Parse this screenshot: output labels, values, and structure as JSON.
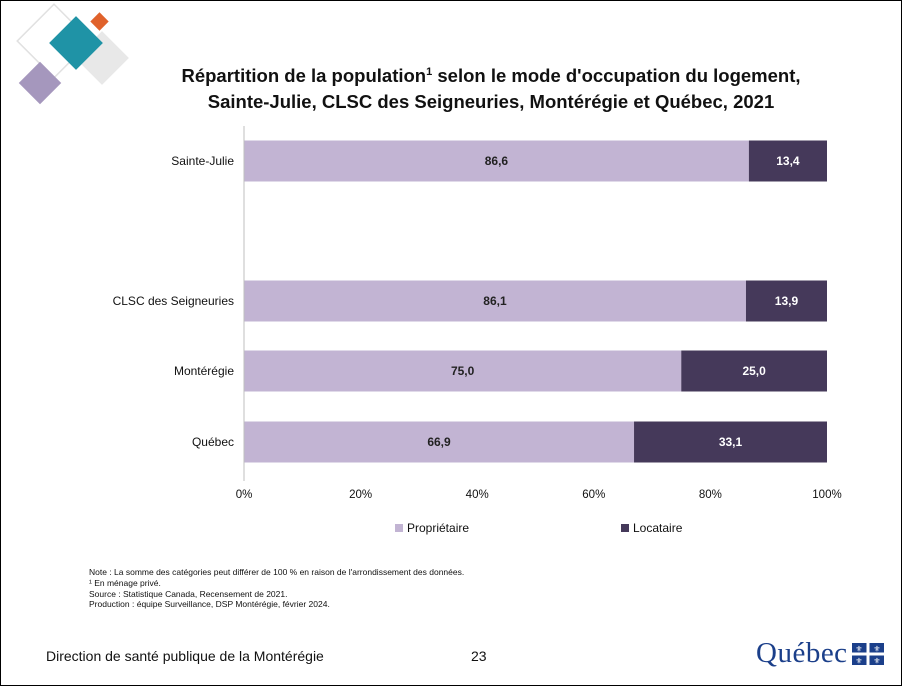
{
  "title": {
    "line1_part1": "Répartition de la population",
    "line1_sup": "1",
    "line1_part2": " selon le mode d'occupation du logement,",
    "line2": "Sainte-Julie, CLSC des Seigneuries, Montérégie et Québec, 2021"
  },
  "chart_data": {
    "type": "bar",
    "orientation": "horizontal",
    "stacked": true,
    "categories": [
      "Sainte-Julie",
      "CLSC des Seigneuries",
      "Montérégie",
      "Québec"
    ],
    "series": [
      {
        "name": "Propriétaire",
        "values": [
          86.6,
          86.1,
          75.0,
          66.9
        ],
        "labels": [
          "86,6",
          "86,1",
          "75,0",
          "66,9"
        ],
        "color": "#c2b4d3",
        "label_color": "#222222"
      },
      {
        "name": "Locataire",
        "values": [
          13.4,
          13.9,
          25.0,
          33.1
        ],
        "labels": [
          "13,4",
          "13,9",
          "25,0",
          "33,1"
        ],
        "color": "#45395a",
        "label_color": "#ffffff"
      }
    ],
    "xlim": [
      0,
      100
    ],
    "xticks": [
      0,
      20,
      40,
      60,
      80,
      100
    ],
    "xtick_labels": [
      "0%",
      "20%",
      "40%",
      "60%",
      "80%",
      "100%"
    ],
    "legend_position": "bottom",
    "grid": false
  },
  "notes": [
    "Note : La somme des catégories peut différer de 100 % en raison de l'arrondissement des données.",
    "¹ En ménage privé.",
    "Source : Statistique Canada, Recensement de 2021.",
    "Production : équipe Surveillance, DSP Montérégie, février 2024."
  ],
  "footer": {
    "organization": "Direction de santé publique de la Montérégie",
    "page_number": "23",
    "logo_text": "Québec"
  },
  "colors": {
    "title": "#111111",
    "logo_text": "#1b3f8a",
    "deco_teal": "#1f93a6",
    "deco_orange": "#e0622b",
    "deco_purple": "#a597bd",
    "deco_grey": "#e4e4e4"
  }
}
